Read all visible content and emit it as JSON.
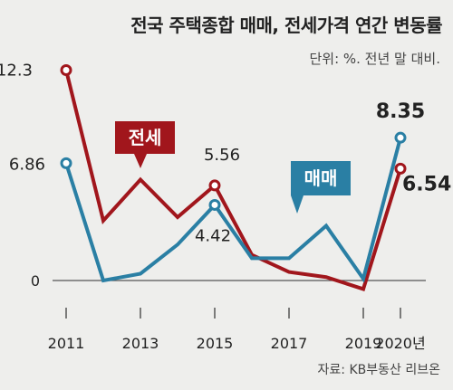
{
  "header": {
    "title": "전국 주택종합 매매, 전세가격 연간 변동률",
    "unit": "단위: %. 전년 말 대비."
  },
  "source": "자료: KB부동산 리브온",
  "colors": {
    "jeonse": "#a1161c",
    "maemae": "#2a7fa4",
    "axis": "#555555",
    "background": "#eeeeec"
  },
  "chart_data": {
    "type": "line",
    "x": [
      2011,
      2012,
      2013,
      2014,
      2015,
      2016,
      2017,
      2018,
      2019,
      2020
    ],
    "xtick_labels": [
      "2011",
      "2013",
      "2015",
      "2017",
      "2019",
      "2020년"
    ],
    "xtick_values": [
      2011,
      2013,
      2015,
      2017,
      2019,
      2020
    ],
    "ytick_labels": [
      "0"
    ],
    "ylim": [
      -0.5,
      13.5
    ],
    "series": [
      {
        "name": "전세",
        "color": "#a1161c",
        "values": [
          12.3,
          3.5,
          5.9,
          3.7,
          5.56,
          1.5,
          0.5,
          0.2,
          -0.5,
          6.54
        ]
      },
      {
        "name": "매매",
        "color": "#2a7fa4",
        "values": [
          6.86,
          0.0,
          0.4,
          2.1,
          4.42,
          1.3,
          1.3,
          3.2,
          0.1,
          8.35
        ]
      }
    ],
    "data_labels": [
      {
        "series": "전세",
        "x": 2011,
        "text": "12.3"
      },
      {
        "series": "매매",
        "x": 2011,
        "text": "6.86"
      },
      {
        "series": "전세",
        "x": 2015,
        "text": "5.56"
      },
      {
        "series": "매매",
        "x": 2015,
        "text": "4.42"
      },
      {
        "series": "매매",
        "x": 2020,
        "text": "8.35"
      },
      {
        "series": "전세",
        "x": 2020,
        "text": "6.54"
      }
    ]
  }
}
